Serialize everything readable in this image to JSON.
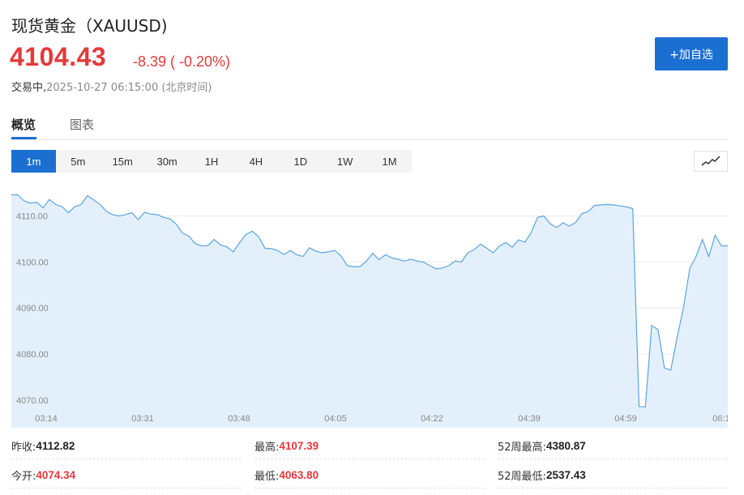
{
  "header": {
    "title": "现货黄金（XAUUSD)",
    "price": "4104.43",
    "change": "-8.39 ( -0.20%)",
    "status": "交易中,",
    "timestamp": "2025-10-27 06:15:00 (北京时间)",
    "add_button": "+加自选"
  },
  "tabs": [
    {
      "label": "概览",
      "active": true
    },
    {
      "label": "图表",
      "active": false
    }
  ],
  "periods": [
    {
      "label": "1m",
      "active": true
    },
    {
      "label": "5m",
      "active": false
    },
    {
      "label": "15m",
      "active": false
    },
    {
      "label": "30m",
      "active": false
    },
    {
      "label": "1H",
      "active": false
    },
    {
      "label": "4H",
      "active": false
    },
    {
      "label": "1D",
      "active": false
    },
    {
      "label": "1W",
      "active": false
    },
    {
      "label": "1M",
      "active": false
    }
  ],
  "chart_type_icon": "line-chart-icon",
  "colors": {
    "accent": "#1a6fd1",
    "down": "#e5383b",
    "line": "#5ba4e0",
    "fill": "#e3f0fb"
  },
  "chart_data": {
    "type": "area",
    "x_ticks": [
      "03:14",
      "03:31",
      "03:48",
      "04:05",
      "04:22",
      "04:39",
      "04:59",
      "06:1"
    ],
    "y_ticks": [
      "4110.00",
      "4100.00",
      "4090.00",
      "4080.00",
      "4070.00"
    ],
    "ylim": [
      4067.5,
      4117.5
    ],
    "grid": true,
    "values": [
      4114.6,
      4114.6,
      4113.3,
      4112.8,
      4113.0,
      4111.8,
      4113.6,
      4112.5,
      4112.0,
      4110.7,
      4112.0,
      4112.5,
      4114.4,
      4113.5,
      4112.5,
      4111.0,
      4110.3,
      4110.0,
      4110.3,
      4110.7,
      4109.2,
      4110.8,
      4110.4,
      4110.3,
      4109.7,
      4109.4,
      4108.2,
      4106.3,
      4105.6,
      4104.0,
      4103.5,
      4103.6,
      4104.9,
      4103.7,
      4103.3,
      4102.2,
      4104.2,
      4106.0,
      4106.7,
      4105.5,
      4103.0,
      4102.9,
      4102.5,
      4101.6,
      4102.5,
      4101.6,
      4101.2,
      4103.1,
      4102.4,
      4102.0,
      4102.2,
      4102.5,
      4101.3,
      4099.2,
      4099.0,
      4099.0,
      4100.2,
      4101.9,
      4100.5,
      4101.6,
      4100.9,
      4100.6,
      4100.2,
      4100.6,
      4100.2,
      4100.0,
      4099.2,
      4098.5,
      4098.7,
      4099.2,
      4100.2,
      4100.0,
      4102.0,
      4102.7,
      4103.9,
      4103.0,
      4102.0,
      4103.5,
      4104.2,
      4103.2,
      4104.8,
      4104.3,
      4106.4,
      4109.7,
      4110.0,
      4108.3,
      4107.5,
      4108.5,
      4107.8,
      4108.6,
      4110.5,
      4111.0,
      4112.3,
      4112.4,
      4112.5,
      4112.4,
      4112.2,
      4112.0,
      4111.6,
      4068.6,
      4068.5,
      4086.2,
      4085.3,
      4077.0,
      4076.5,
      4083.5,
      4090.0,
      4098.6,
      4101.2,
      4104.9,
      4101.2,
      4105.8,
      4103.5,
      4103.5
    ]
  },
  "stats": [
    [
      {
        "label": "昨收:",
        "value": "4112.82",
        "red": false
      },
      {
        "label": "最高:",
        "value": "4107.39",
        "red": true
      },
      {
        "label": "52周最高:",
        "value": "4380.87",
        "red": false
      }
    ],
    [
      {
        "label": "今开:",
        "value": "4074.34",
        "red": true
      },
      {
        "label": "最低:",
        "value": "4063.80",
        "red": true
      },
      {
        "label": "52周最低:",
        "value": "2537.43",
        "red": false
      }
    ]
  ]
}
